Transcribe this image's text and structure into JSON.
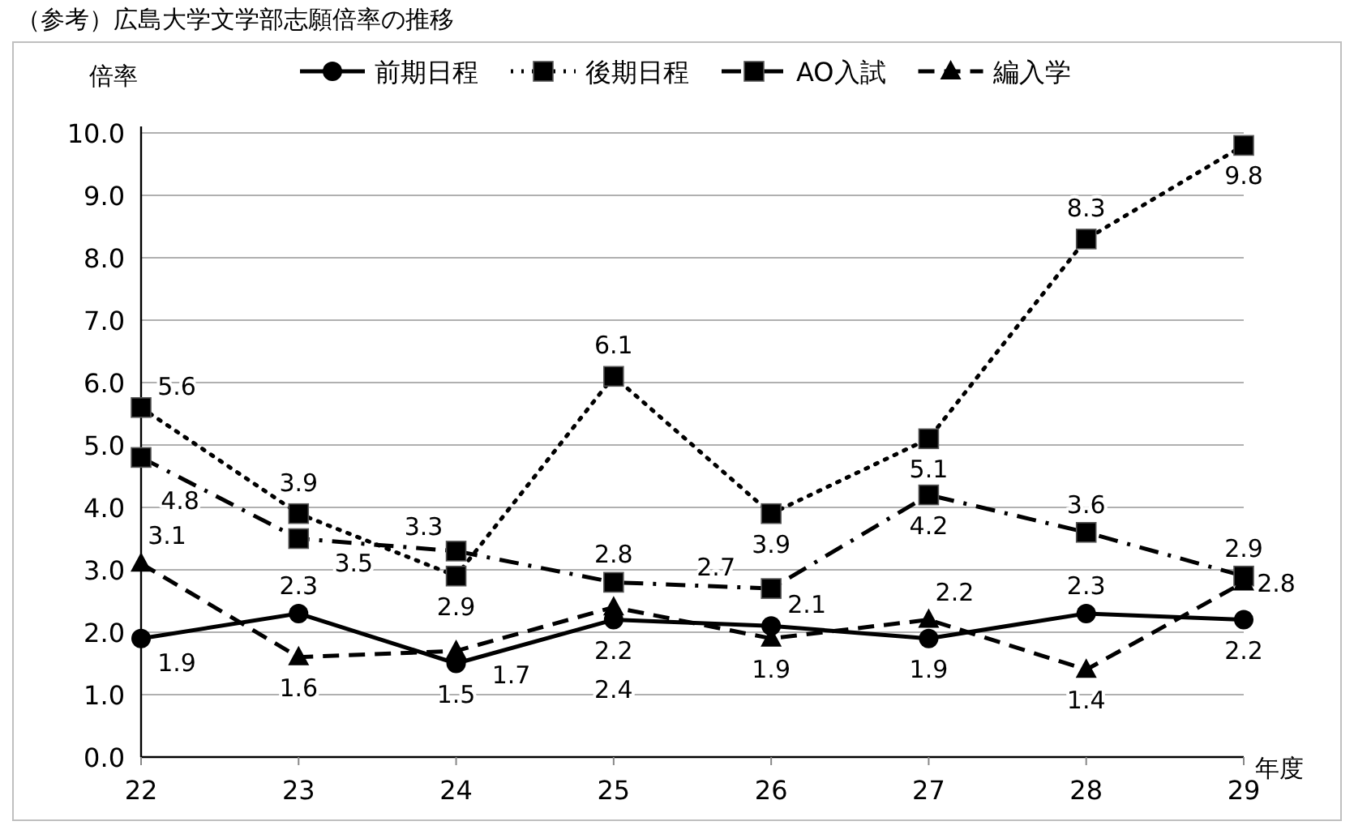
{
  "chart_data": {
    "type": "line",
    "title": "（参考）広島大学文学部志願倍率の推移",
    "ylabel": "倍率",
    "xlabel": "年度",
    "categories": [
      "22",
      "23",
      "24",
      "25",
      "26",
      "27",
      "28",
      "29"
    ],
    "ylim": [
      0,
      10
    ],
    "yticks": [
      {
        "value": 0,
        "label": "0.0"
      },
      {
        "value": 1,
        "label": "1.0"
      },
      {
        "value": 2,
        "label": "2.0"
      },
      {
        "value": 3,
        "label": "3.0"
      },
      {
        "value": 4,
        "label": "4.0"
      },
      {
        "value": 5,
        "label": "5.0"
      },
      {
        "value": 6,
        "label": "6.0"
      },
      {
        "value": 7,
        "label": "7.0"
      },
      {
        "value": 8,
        "label": "8.0"
      },
      {
        "value": 9,
        "label": "9.0"
      },
      {
        "value": 10,
        "label": "10.0"
      }
    ],
    "grid": "y",
    "legend": "top",
    "data_labels": true,
    "series": [
      {
        "name": "前期日程",
        "color": "#000000",
        "marker": "circle",
        "line_style": "solid",
        "values": [
          1.9,
          2.3,
          1.5,
          2.2,
          2.1,
          1.9,
          2.3,
          2.2
        ]
      },
      {
        "name": "後期日程",
        "color": "#000000",
        "marker": "square",
        "line_style": "dotted",
        "values": [
          5.6,
          3.9,
          2.9,
          6.1,
          3.9,
          5.1,
          8.3,
          9.8
        ]
      },
      {
        "name": "AO入試",
        "color": "#000000",
        "marker": "square",
        "line_style": "dashdot",
        "values": [
          4.8,
          3.5,
          3.3,
          2.8,
          2.7,
          4.2,
          3.6,
          2.9
        ]
      },
      {
        "name": "編入学",
        "color": "#000000",
        "marker": "triangle",
        "line_style": "dashed",
        "values": [
          3.1,
          1.6,
          1.7,
          2.4,
          1.9,
          2.2,
          1.4,
          2.8
        ]
      }
    ]
  }
}
